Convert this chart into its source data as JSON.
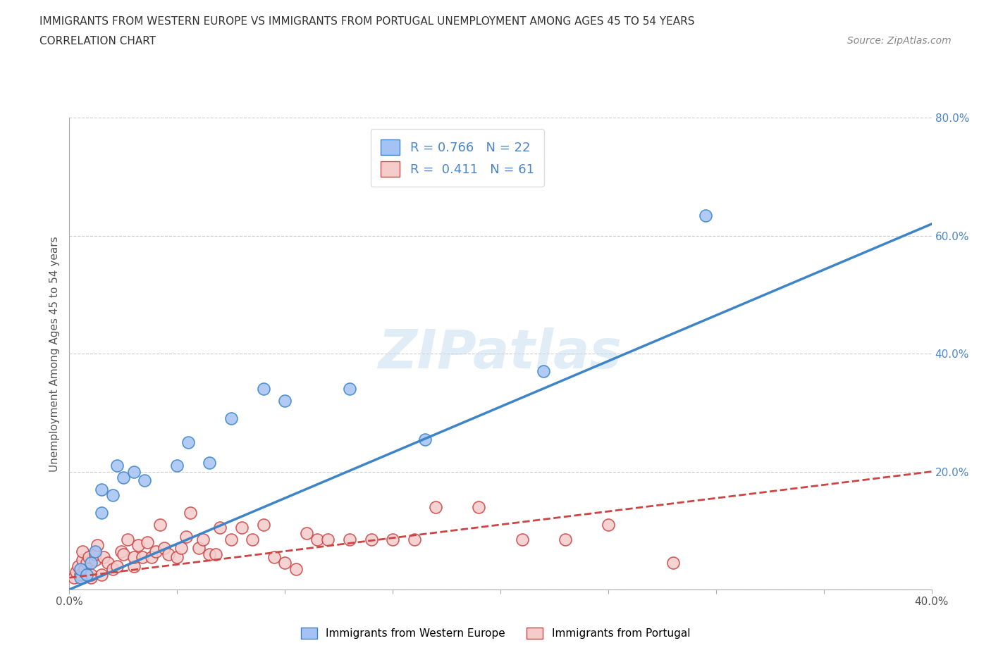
{
  "title_line1": "IMMIGRANTS FROM WESTERN EUROPE VS IMMIGRANTS FROM PORTUGAL UNEMPLOYMENT AMONG AGES 45 TO 54 YEARS",
  "title_line2": "CORRELATION CHART",
  "source_text": "Source: ZipAtlas.com",
  "ylabel": "Unemployment Among Ages 45 to 54 years",
  "xlim": [
    0.0,
    0.4
  ],
  "ylim": [
    0.0,
    0.8
  ],
  "xticks": [
    0.0,
    0.05,
    0.1,
    0.15,
    0.2,
    0.25,
    0.3,
    0.35,
    0.4
  ],
  "yticks": [
    0.0,
    0.2,
    0.4,
    0.6,
    0.8
  ],
  "blue_color": "#a4c2f4",
  "pink_color": "#f4cccc",
  "line_blue": "#3d85c8",
  "line_pink": "#cc4444",
  "R_blue": 0.766,
  "N_blue": 22,
  "R_pink": 0.411,
  "N_pink": 61,
  "watermark": "ZIPatlas",
  "background_color": "#ffffff",
  "grid_color": "#cccccc",
  "legend_label_blue": "Immigrants from Western Europe",
  "legend_label_pink": "Immigrants from Portugal",
  "blue_scatter_x": [
    0.005,
    0.005,
    0.008,
    0.01,
    0.012,
    0.015,
    0.015,
    0.02,
    0.022,
    0.025,
    0.03,
    0.035,
    0.05,
    0.055,
    0.065,
    0.075,
    0.09,
    0.1,
    0.13,
    0.165,
    0.22,
    0.295
  ],
  "blue_scatter_y": [
    0.02,
    0.035,
    0.025,
    0.045,
    0.065,
    0.13,
    0.17,
    0.16,
    0.21,
    0.19,
    0.2,
    0.185,
    0.21,
    0.25,
    0.215,
    0.29,
    0.34,
    0.32,
    0.34,
    0.255,
    0.37,
    0.635
  ],
  "pink_scatter_x": [
    0.002,
    0.003,
    0.004,
    0.005,
    0.006,
    0.006,
    0.007,
    0.008,
    0.009,
    0.01,
    0.01,
    0.012,
    0.012,
    0.013,
    0.015,
    0.016,
    0.018,
    0.02,
    0.022,
    0.024,
    0.025,
    0.027,
    0.03,
    0.03,
    0.032,
    0.034,
    0.036,
    0.038,
    0.04,
    0.042,
    0.044,
    0.046,
    0.05,
    0.052,
    0.054,
    0.056,
    0.06,
    0.062,
    0.065,
    0.068,
    0.07,
    0.075,
    0.08,
    0.085,
    0.09,
    0.095,
    0.1,
    0.105,
    0.11,
    0.115,
    0.12,
    0.13,
    0.14,
    0.15,
    0.16,
    0.17,
    0.19,
    0.21,
    0.23,
    0.25,
    0.28
  ],
  "pink_scatter_y": [
    0.02,
    0.03,
    0.04,
    0.025,
    0.05,
    0.065,
    0.035,
    0.045,
    0.055,
    0.02,
    0.025,
    0.05,
    0.06,
    0.075,
    0.025,
    0.055,
    0.045,
    0.035,
    0.04,
    0.065,
    0.06,
    0.085,
    0.04,
    0.055,
    0.075,
    0.055,
    0.08,
    0.055,
    0.065,
    0.11,
    0.07,
    0.06,
    0.055,
    0.07,
    0.09,
    0.13,
    0.07,
    0.085,
    0.06,
    0.06,
    0.105,
    0.085,
    0.105,
    0.085,
    0.11,
    0.055,
    0.045,
    0.035,
    0.095,
    0.085,
    0.085,
    0.085,
    0.085,
    0.085,
    0.085,
    0.14,
    0.14,
    0.085,
    0.085,
    0.11,
    0.045
  ],
  "blue_trend_x0": 0.0,
  "blue_trend_y0": 0.0,
  "blue_trend_x1": 0.4,
  "blue_trend_y1": 0.62,
  "pink_trend_x0": 0.0,
  "pink_trend_y0": 0.02,
  "pink_trend_x1": 0.4,
  "pink_trend_y1": 0.2
}
